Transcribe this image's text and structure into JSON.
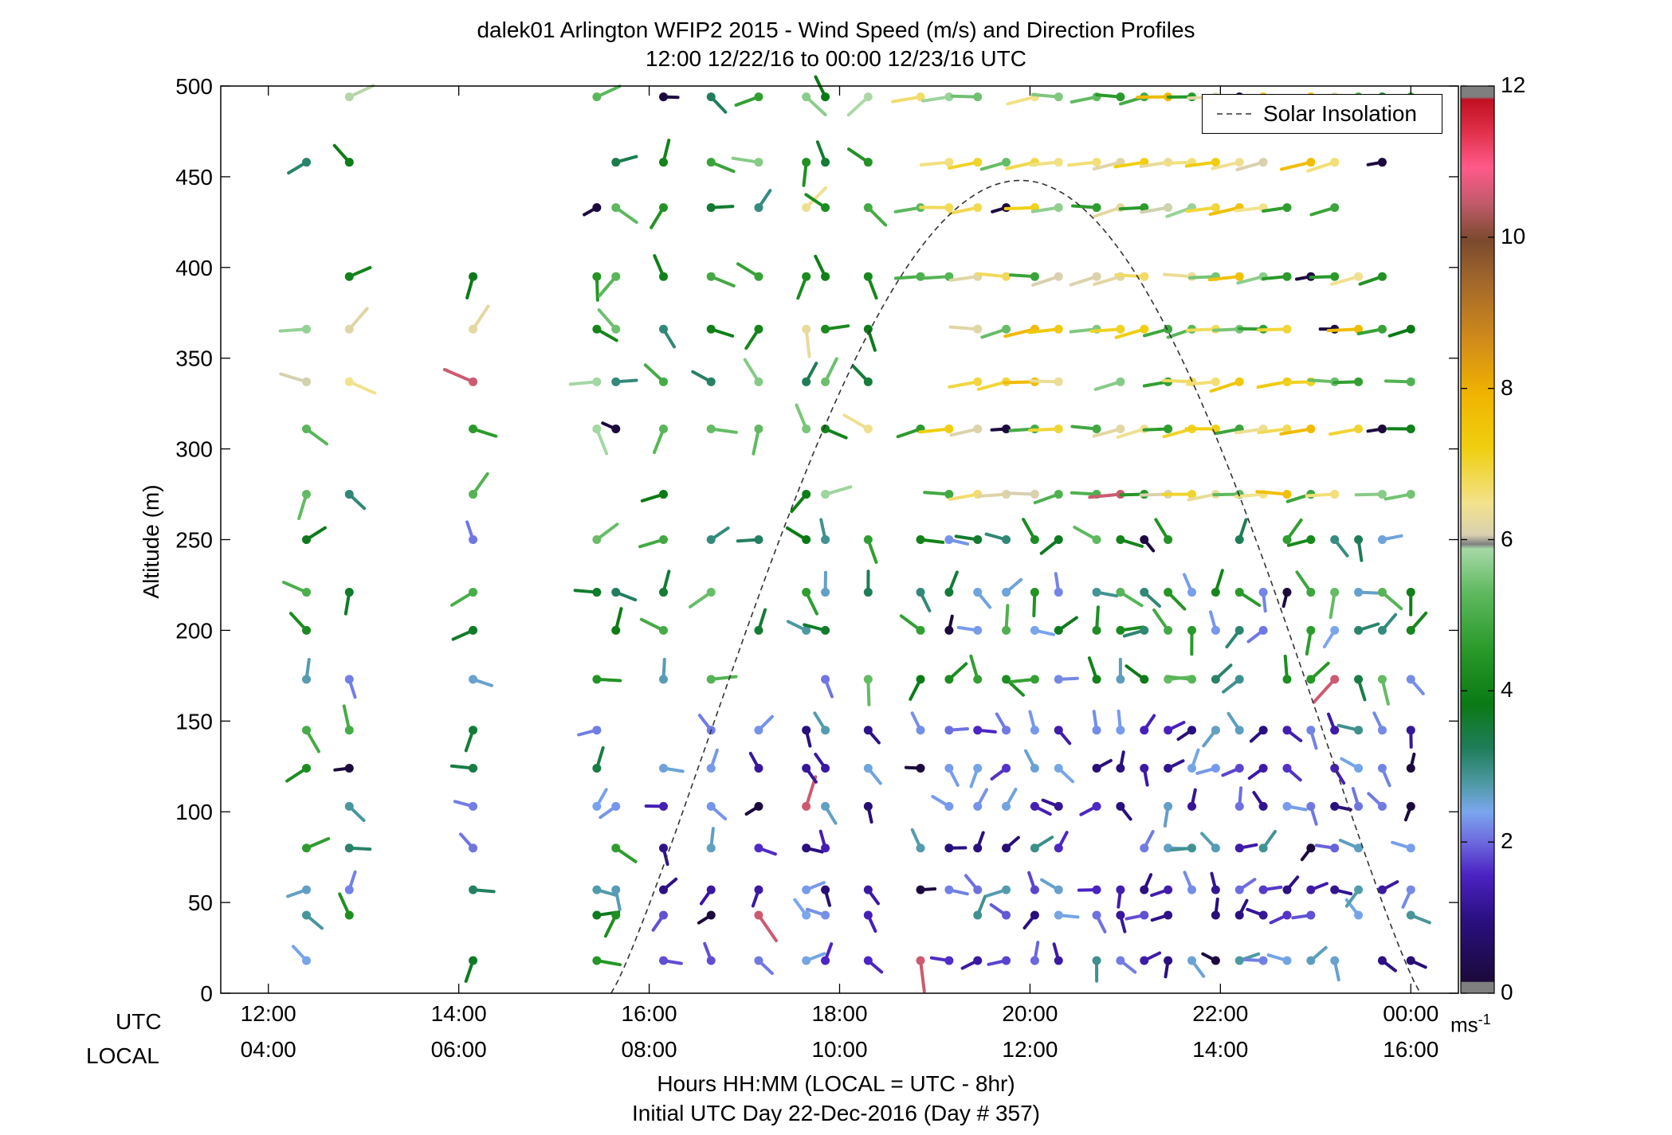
{
  "title": "dalek01 Arlington WFIP2 2015 - Wind Speed (m/s) and Direction Profiles",
  "subtitle": "12:00 12/22/16 to 00:00 12/23/16  UTC",
  "ylabel": "Altitude (m)",
  "xlabel_row_utc": "UTC",
  "xlabel_row_local": "LOCAL",
  "xlabel_main": "Hours HH:MM  (LOCAL = UTC - 8hr)",
  "xlabel_sub": "Initial UTC Day 22-Dec-2016 (Day # 357)",
  "colorbar_unit": "ms",
  "colorbar_unit_exp": "-1",
  "legend": {
    "line_label": "Solar Insolation"
  },
  "chart_data": {
    "type": "scatter",
    "title": "dalek01 Arlington WFIP2 2015 - Wind Speed (m/s) and Direction Profiles",
    "subtitle": "12:00 12/22/16 to 00:00 12/23/16  UTC",
    "ylabel": "Altitude (m)",
    "xlim_hours": [
      11.5,
      24.5
    ],
    "ylim": [
      0,
      500
    ],
    "yticks": [
      "0",
      "50",
      "100",
      "150",
      "200",
      "250",
      "300",
      "350",
      "400",
      "450",
      "500"
    ],
    "xticks_utc": [
      "12:00",
      "14:00",
      "16:00",
      "18:00",
      "20:00",
      "22:00",
      "00:00"
    ],
    "xticks_local": [
      "04:00",
      "06:00",
      "08:00",
      "10:00",
      "12:00",
      "14:00",
      "16:00"
    ],
    "xtick_hours": [
      12,
      14,
      16,
      18,
      20,
      22,
      24
    ],
    "colorbar": {
      "min": 0,
      "max": 12,
      "ticks": [
        "0",
        "2",
        "4",
        "6",
        "8",
        "10",
        "12"
      ]
    },
    "solar_insolation_peak_hour": 19.9,
    "solar_insolation_peak_altitude": 448,
    "solar_insolation_start_hour": 15.6,
    "solar_insolation_end_hour": 24.1,
    "profile_hours": [
      12.4,
      12.85,
      14.15,
      15.45,
      15.65,
      16.15,
      16.65,
      17.15,
      17.65,
      17.85,
      18.3,
      18.85,
      19.15,
      19.45,
      19.75,
      20.05,
      20.3,
      20.7,
      20.95,
      21.2,
      21.45,
      21.7,
      21.95,
      22.2,
      22.45,
      22.7,
      22.95,
      23.2,
      23.45,
      23.7,
      24.0
    ],
    "profile_altitudes": [
      18,
      43,
      57,
      80,
      103,
      124,
      145,
      173,
      200,
      221,
      250,
      275,
      311,
      337,
      366,
      395,
      433,
      458,
      494
    ]
  }
}
